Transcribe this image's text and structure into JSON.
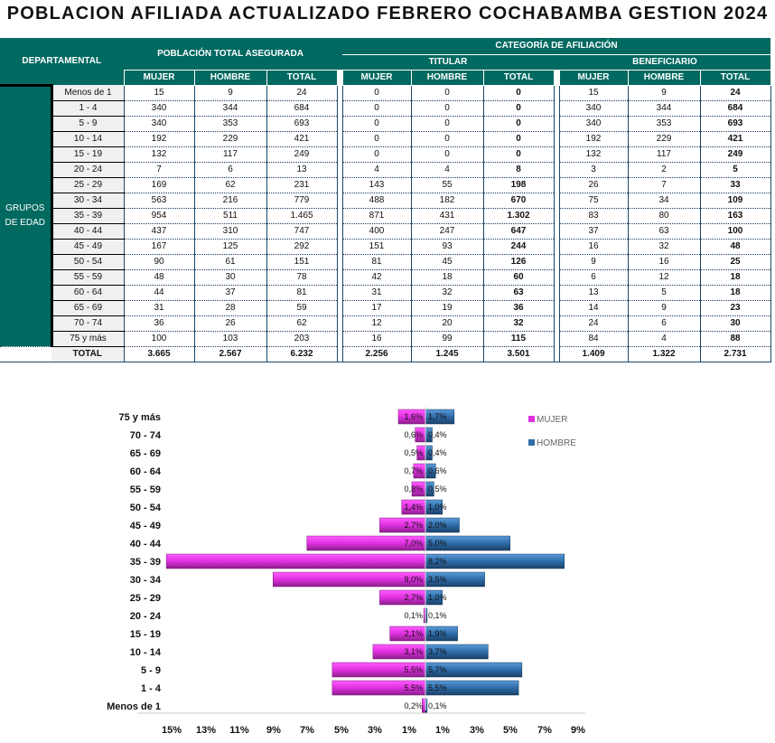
{
  "title": "POBLACION AFILIADA ACTUALIZADO FEBRERO COCHABAMBA GESTION 2024",
  "table": {
    "dept_header": "DEPARTAMENTAL",
    "pop_header": "POBLACIÓN TOTAL ASEGURADA",
    "cat_header": "CATEGORÍA DE AFILIACIÓN",
    "titular_header": "TITULAR",
    "benef_header": "BENEFICIARIO",
    "cols": [
      "MUJER",
      "HOMBRE",
      "TOTAL"
    ],
    "group_label": "GRUPOS DE EDAD",
    "rows": [
      [
        "Menos de 1",
        "15",
        "9",
        "24",
        "0",
        "0",
        "0",
        "15",
        "9",
        "24"
      ],
      [
        "1 - 4",
        "340",
        "344",
        "684",
        "0",
        "0",
        "0",
        "340",
        "344",
        "684"
      ],
      [
        "5 - 9",
        "340",
        "353",
        "693",
        "0",
        "0",
        "0",
        "340",
        "353",
        "693"
      ],
      [
        "10 - 14",
        "192",
        "229",
        "421",
        "0",
        "0",
        "0",
        "192",
        "229",
        "421"
      ],
      [
        "15 - 19",
        "132",
        "117",
        "249",
        "0",
        "0",
        "0",
        "132",
        "117",
        "249"
      ],
      [
        "20 - 24",
        "7",
        "6",
        "13",
        "4",
        "4",
        "8",
        "3",
        "2",
        "5"
      ],
      [
        "25 - 29",
        "169",
        "62",
        "231",
        "143",
        "55",
        "198",
        "26",
        "7",
        "33"
      ],
      [
        "30 - 34",
        "563",
        "216",
        "779",
        "488",
        "182",
        "670",
        "75",
        "34",
        "109"
      ],
      [
        "35 - 39",
        "954",
        "511",
        "1.465",
        "871",
        "431",
        "1.302",
        "83",
        "80",
        "163"
      ],
      [
        "40 - 44",
        "437",
        "310",
        "747",
        "400",
        "247",
        "647",
        "37",
        "63",
        "100"
      ],
      [
        "45 - 49",
        "167",
        "125",
        "292",
        "151",
        "93",
        "244",
        "16",
        "32",
        "48"
      ],
      [
        "50 - 54",
        "90",
        "61",
        "151",
        "81",
        "45",
        "126",
        "9",
        "16",
        "25"
      ],
      [
        "55 - 59",
        "48",
        "30",
        "78",
        "42",
        "18",
        "60",
        "6",
        "12",
        "18"
      ],
      [
        "60 - 64",
        "44",
        "37",
        "81",
        "31",
        "32",
        "63",
        "13",
        "5",
        "18"
      ],
      [
        "65 - 69",
        "31",
        "28",
        "59",
        "17",
        "19",
        "36",
        "14",
        "9",
        "23"
      ],
      [
        "70 - 74",
        "36",
        "26",
        "62",
        "12",
        "20",
        "32",
        "24",
        "6",
        "30"
      ],
      [
        "75 y más",
        "100",
        "103",
        "203",
        "16",
        "99",
        "115",
        "84",
        "4",
        "88"
      ]
    ],
    "total": [
      "TOTAL",
      "3.665",
      "2.567",
      "6.232",
      "2.256",
      "1.245",
      "3.501",
      "1.409",
      "1.322",
      "2.731"
    ]
  },
  "chart_data": {
    "type": "bar",
    "orientation": "horizontal-pyramid",
    "categories": [
      "75 y más",
      "70 - 74",
      "65 - 69",
      "60 - 64",
      "55 - 59",
      "50 - 54",
      "45 - 49",
      "40 - 44",
      "35 - 39",
      "30 - 34",
      "25 - 29",
      "20 - 24",
      "15 - 19",
      "10 - 14",
      "5 - 9",
      "1 - 4",
      "Menos de 1"
    ],
    "series": [
      {
        "name": "MUJER",
        "color": "#e030e0",
        "values": [
          1.6,
          0.6,
          0.5,
          0.7,
          0.8,
          1.4,
          2.7,
          7.0,
          15.3,
          9.0,
          2.7,
          0.1,
          2.1,
          3.1,
          5.5,
          5.5,
          0.2
        ],
        "labels": [
          "1,6%",
          "0,6%",
          "0,5%",
          "0,7%",
          "0,8%",
          "1,4%",
          "2,7%",
          "7,0%",
          "",
          "9,0%",
          "2,7%",
          "0,1%",
          "2,1%",
          "3,1%",
          "5,5%",
          "5,5%",
          "0,2%"
        ]
      },
      {
        "name": "HOMBRE",
        "color": "#2e6ca8",
        "values": [
          1.7,
          0.4,
          0.4,
          0.6,
          0.5,
          1.0,
          2.0,
          5.0,
          8.2,
          3.5,
          1.0,
          0.1,
          1.9,
          3.7,
          5.7,
          5.5,
          0.1
        ],
        "labels": [
          "1,7%",
          "0,4%",
          "0,4%",
          "0,6%",
          "0,5%",
          "1,0%",
          "2,0%",
          "5,0%",
          "8,2%",
          "3,5%",
          "1,0%",
          "0,1%",
          "1,9%",
          "3,7%",
          "5,7%",
          "5,5%",
          "0,1%"
        ]
      }
    ],
    "x_ticks": [
      "15%",
      "13%",
      "11%",
      "9%",
      "7%",
      "5%",
      "3%",
      "1%",
      "1%",
      "3%",
      "5%",
      "7%",
      "9%"
    ],
    "legend": "top-right"
  }
}
